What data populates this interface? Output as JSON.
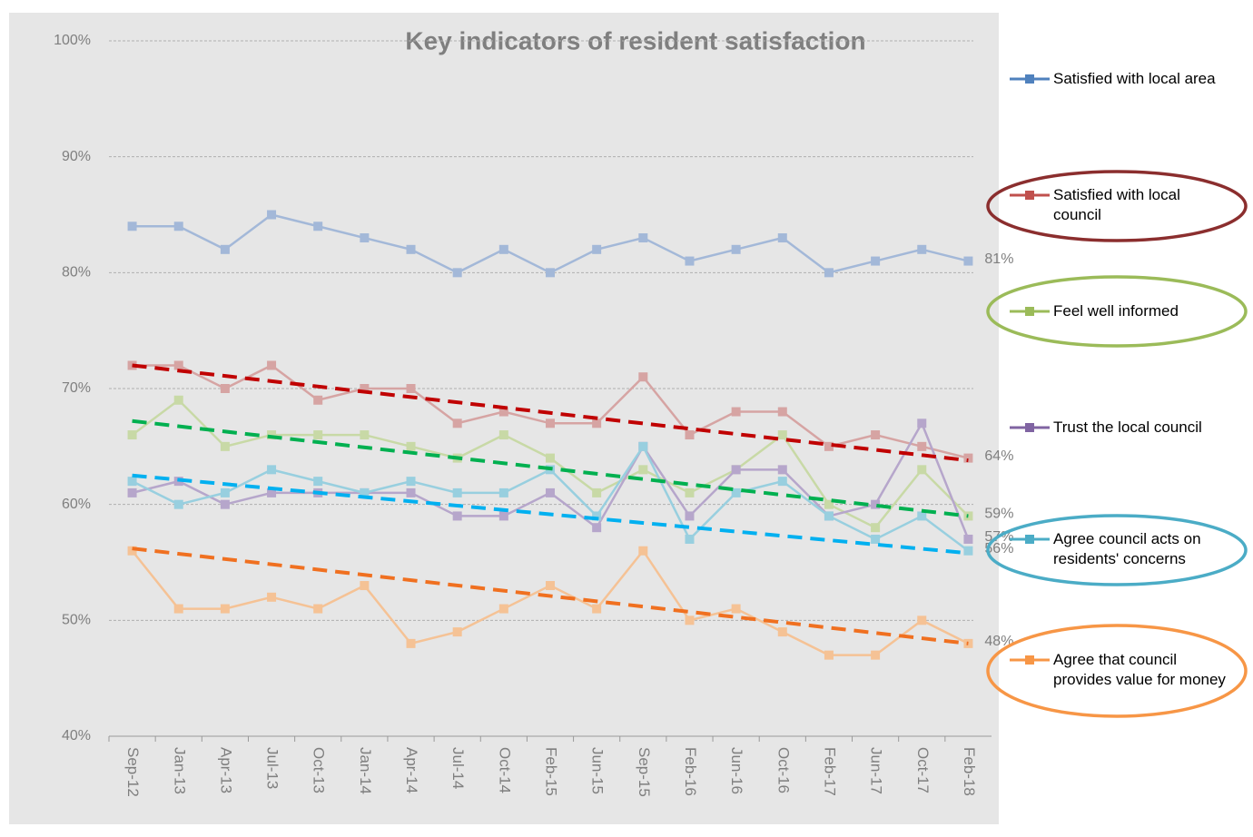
{
  "chart_data": {
    "type": "line",
    "title": "Key indicators of resident satisfaction",
    "categories": [
      "Sep-12",
      "Jan-13",
      "Apr-13",
      "Jul-13",
      "Oct-13",
      "Jan-14",
      "Apr-14",
      "Jul-14",
      "Oct-14",
      "Feb-15",
      "Jun-15",
      "Sep-15",
      "Feb-16",
      "Jun-16",
      "Oct-16",
      "Feb-17",
      "Jun-17",
      "Oct-17",
      "Feb-18"
    ],
    "ylim": [
      40,
      100
    ],
    "yticks": [
      {
        "value": 40,
        "label": "40%"
      },
      {
        "value": 50,
        "label": "50%"
      },
      {
        "value": 60,
        "label": "60%"
      },
      {
        "value": 70,
        "label": "70%"
      },
      {
        "value": 80,
        "label": "80%"
      },
      {
        "value": 90,
        "label": "90%"
      },
      {
        "value": 100,
        "label": "100%"
      }
    ],
    "grid": true,
    "legend": "right",
    "series": [
      {
        "name": "Satisfied with local area",
        "color": "#a3b8d8",
        "legend_color": "#4f81bd",
        "values": [
          84,
          84,
          82,
          85,
          84,
          83,
          82,
          80,
          82,
          80,
          82,
          83,
          81,
          82,
          83,
          80,
          81,
          82,
          81
        ],
        "value_labels": [
          null,
          null,
          null,
          null,
          null,
          null,
          null,
          null,
          null,
          null,
          null,
          null,
          null,
          null,
          null,
          null,
          null,
          null,
          "81%"
        ]
      },
      {
        "name": "Satisfied with local council",
        "color": "#d6a4a3",
        "legend_color": "#c0504d",
        "circle_color": "#8b2e2e",
        "values": [
          72,
          72,
          70,
          72,
          69,
          70,
          70,
          67,
          68,
          67,
          67,
          71,
          66,
          68,
          68,
          65,
          66,
          65,
          64
        ],
        "value_labels": [
          null,
          null,
          null,
          null,
          null,
          null,
          null,
          null,
          null,
          null,
          null,
          null,
          null,
          null,
          null,
          null,
          null,
          null,
          "64%"
        ],
        "trend": {
          "values": [
            72,
            63.8
          ],
          "color": "#c00000"
        }
      },
      {
        "name": "Feel well informed",
        "color": "#c8d9a6",
        "legend_color": "#9bbb59",
        "circle_color": "#9bbb59",
        "values": [
          66,
          69,
          65,
          66,
          66,
          66,
          65,
          64,
          66,
          64,
          61,
          63,
          61,
          63,
          66,
          60,
          58,
          63,
          59
        ],
        "value_labels": [
          null,
          null,
          null,
          null,
          null,
          null,
          null,
          null,
          null,
          null,
          null,
          null,
          null,
          null,
          null,
          null,
          null,
          null,
          "59%"
        ],
        "trend": {
          "values": [
            67.2,
            59
          ],
          "color": "#00b050"
        }
      },
      {
        "name": "Trust the local council",
        "color": "#b6a6cb",
        "legend_color": "#8064a2",
        "values": [
          61,
          62,
          60,
          61,
          61,
          61,
          61,
          59,
          59,
          61,
          58,
          65,
          59,
          63,
          63,
          59,
          60,
          67,
          57
        ],
        "value_labels": [
          null,
          null,
          null,
          null,
          null,
          null,
          null,
          null,
          null,
          null,
          null,
          null,
          null,
          null,
          null,
          null,
          null,
          null,
          "57%"
        ]
      },
      {
        "name": "Agree council acts on residents' concerns",
        "color": "#98cfdf",
        "legend_color": "#4bacc6",
        "circle_color": "#4bacc6",
        "values": [
          62,
          60,
          61,
          63,
          62,
          61,
          62,
          61,
          61,
          63,
          59,
          65,
          57,
          61,
          62,
          59,
          57,
          59,
          56
        ],
        "value_labels": [
          null,
          null,
          null,
          null,
          null,
          null,
          null,
          null,
          null,
          null,
          null,
          null,
          null,
          null,
          null,
          null,
          null,
          null,
          "56%"
        ],
        "trend": {
          "values": [
            62.5,
            55.8
          ],
          "color": "#00b0f0"
        }
      },
      {
        "name": "Agree that council provides value for money",
        "color": "#f5c295",
        "legend_color": "#f79646",
        "circle_color": "#f79646",
        "values": [
          56,
          51,
          51,
          52,
          51,
          53,
          48,
          49,
          51,
          53,
          51,
          56,
          50,
          51,
          49,
          47,
          47,
          50,
          48
        ],
        "value_labels": [
          null,
          null,
          null,
          null,
          null,
          null,
          null,
          null,
          null,
          null,
          null,
          null,
          null,
          null,
          null,
          null,
          null,
          null,
          "48%"
        ],
        "trend": {
          "values": [
            56.2,
            48
          ],
          "color": "#f07020"
        }
      }
    ]
  }
}
